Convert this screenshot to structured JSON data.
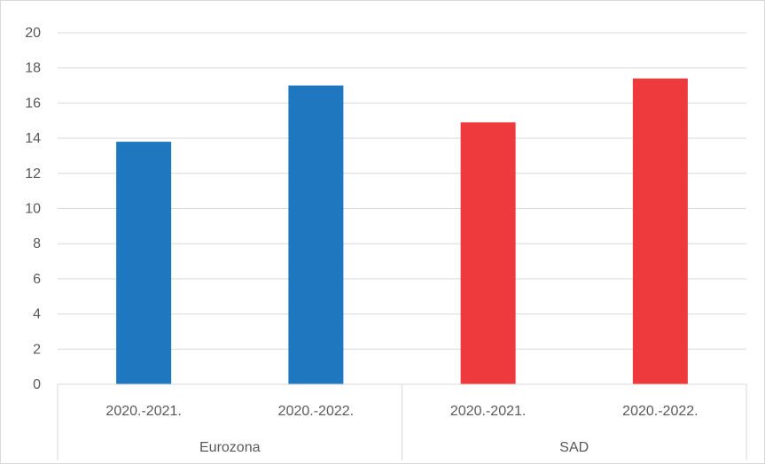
{
  "chart_data": {
    "type": "bar",
    "groups": [
      {
        "label": "Eurozona",
        "color": "#1f77c0",
        "bars": [
          {
            "category": "2020.-2021.",
            "value": 13.8
          },
          {
            "category": "2020.-2022.",
            "value": 17.0
          }
        ]
      },
      {
        "label": "SAD",
        "color": "#ee3a3c",
        "bars": [
          {
            "category": "2020.-2021.",
            "value": 14.9
          },
          {
            "category": "2020.-2022.",
            "value": 17.4
          }
        ]
      }
    ],
    "ylim": [
      0,
      20
    ],
    "yticks": [
      "0",
      "2",
      "4",
      "6",
      "8",
      "10",
      "12",
      "14",
      "16",
      "18",
      "20"
    ],
    "grid": true,
    "legend": "none",
    "title": "",
    "xlabel": "",
    "ylabel": ""
  }
}
